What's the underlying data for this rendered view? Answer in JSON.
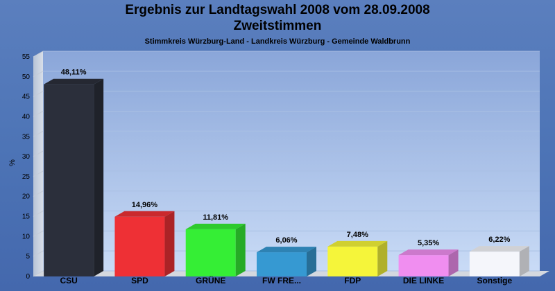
{
  "chart_data": {
    "type": "bar",
    "title": "Ergebnis zur Landtagswahl 2008 vom 28.09.2008",
    "subtitle": "Zweitstimmen",
    "subtitle2": "Stimmkreis Würzburg-Land - Landkreis Würzburg - Gemeinde Waldbrunn",
    "ylabel": "%",
    "ylim": [
      0,
      55
    ],
    "yticks": [
      0,
      5,
      10,
      15,
      20,
      25,
      30,
      35,
      40,
      45,
      50,
      55
    ],
    "categories": [
      "CSU",
      "SPD",
      "GRÜNE",
      "FW FRE...",
      "FDP",
      "DIE LINKE",
      "Sonstige"
    ],
    "values": [
      48.11,
      14.96,
      11.81,
      6.06,
      7.48,
      5.35,
      6.22
    ],
    "labels": [
      "48,11%",
      "14,96%",
      "11,81%",
      "6,06%",
      "7,48%",
      "5,35%",
      "6,22%"
    ],
    "colors": [
      "#2b2f3b",
      "#ee3035",
      "#35ee35",
      "#3699d2",
      "#f5f53a",
      "#f08ef0",
      "#f5f6fb"
    ],
    "grid": true
  }
}
